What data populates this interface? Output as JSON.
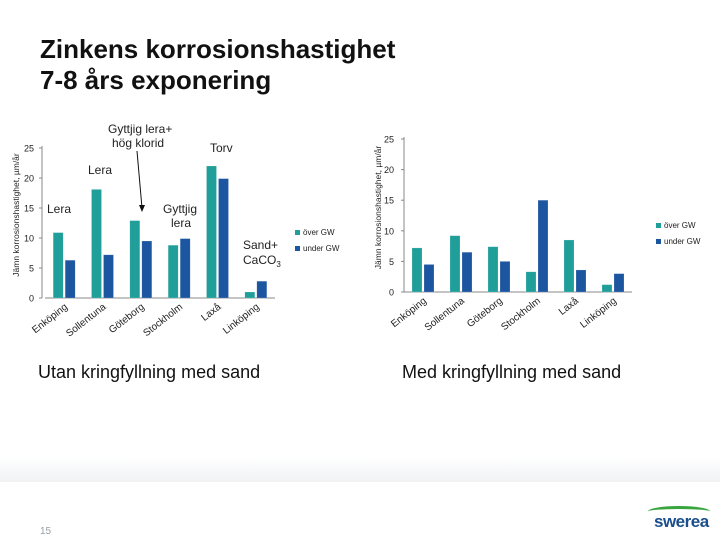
{
  "slide": {
    "title_line1": "Zinkens korrosionshastighet",
    "title_line2": "7-8 års exponering",
    "page_number": "15",
    "logo_text": "swerea",
    "colors": {
      "over_gw": "#1f9e9a",
      "under_gw": "#1c56a0",
      "logo": "#1a4e8c",
      "logo_wave": "#38a63c"
    }
  },
  "annotations": {
    "gyttjig_lera_hog_klorid": [
      "Gyttjig lera+",
      "hög klorid"
    ],
    "torv": "Torv",
    "lera_top": "Lera",
    "lera": "Lera",
    "gyttjig_lera": [
      "Gyttjig",
      "lera"
    ],
    "sand_caco3": [
      "Sand+",
      "CaCO"
    ],
    "sand_caco3_sub": "3"
  },
  "chart_data": [
    {
      "type": "bar",
      "title": "Utan kringfyllning med sand",
      "ylabel": "Jämn korrosionshastighet, µm/år",
      "xlabel": "",
      "ylim": [
        0,
        25
      ],
      "yticks": [
        0,
        5,
        10,
        15,
        20,
        25
      ],
      "grid": false,
      "legend": "right",
      "categories": [
        "Enköping",
        "Sollentuna",
        "Göteborg",
        "Stockholm",
        "Laxå",
        "Linköping"
      ],
      "series": [
        {
          "name": "över GW",
          "color": "#1f9e9a",
          "values": [
            10.9,
            18.1,
            12.9,
            8.8,
            22.0,
            1.0
          ]
        },
        {
          "name": "under GW",
          "color": "#1c56a0",
          "values": [
            6.3,
            7.2,
            9.5,
            9.9,
            19.9,
            2.8
          ]
        }
      ]
    },
    {
      "type": "bar",
      "title": "Med kringfyllning med sand",
      "ylabel": "Jämn korrosionshastighet, µm/år",
      "xlabel": "",
      "ylim": [
        0,
        25
      ],
      "yticks": [
        0,
        5,
        10,
        15,
        20,
        25
      ],
      "grid": false,
      "legend": "right",
      "categories": [
        "Enköping",
        "Sollentuna",
        "Göteborg",
        "Stockholm",
        "Laxå",
        "Linköping"
      ],
      "series": [
        {
          "name": "över GW",
          "color": "#1f9e9a",
          "values": [
            7.2,
            9.2,
            7.4,
            3.3,
            8.5,
            1.2
          ]
        },
        {
          "name": "under GW",
          "color": "#1c56a0",
          "values": [
            4.5,
            6.5,
            5.0,
            15.0,
            3.6,
            3.0
          ]
        }
      ]
    }
  ]
}
